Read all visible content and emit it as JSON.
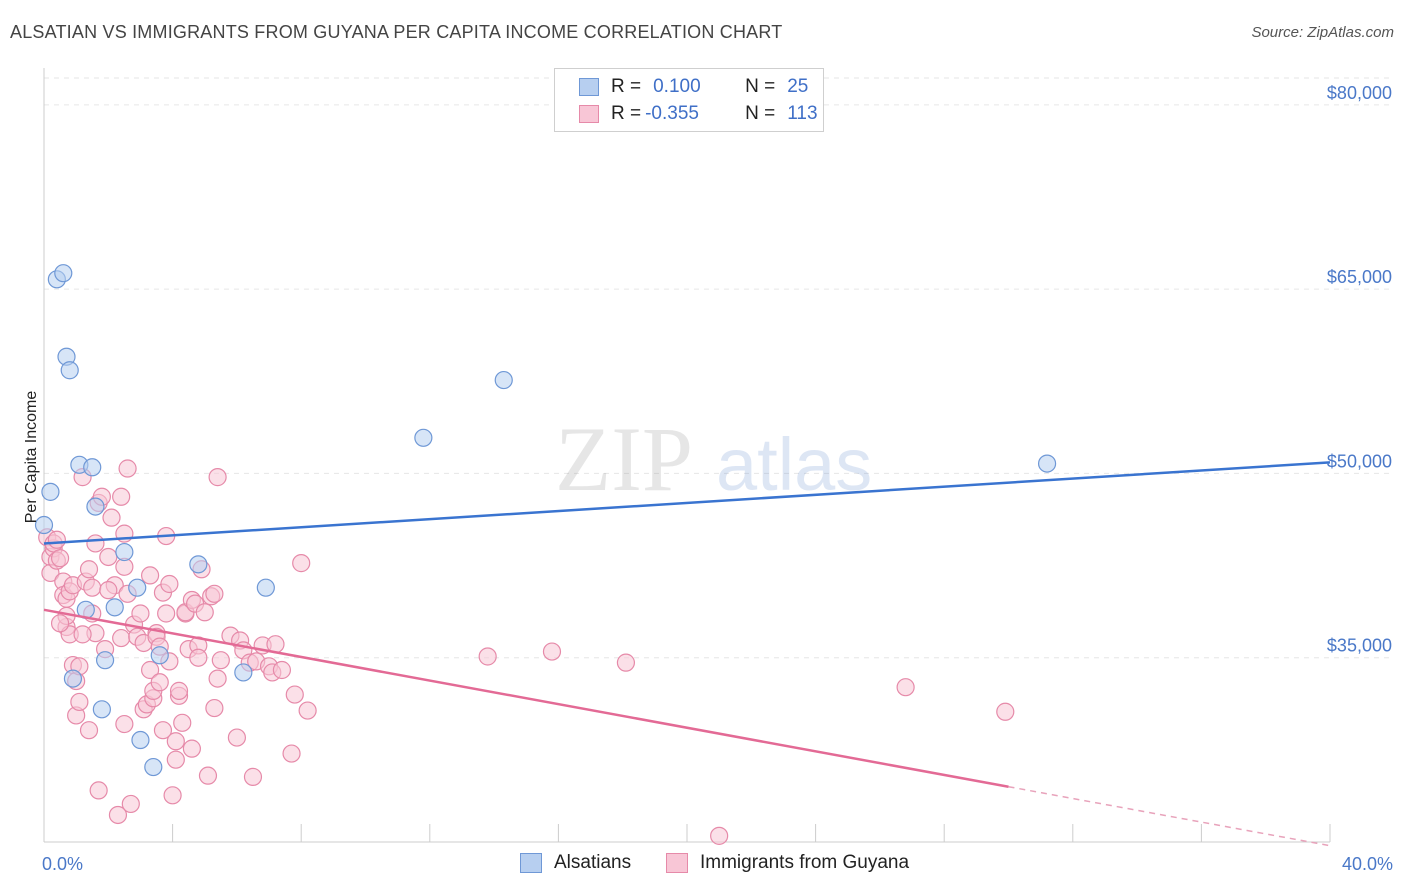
{
  "title": "ALSATIAN VS IMMIGRANTS FROM GUYANA PER CAPITA INCOME CORRELATION CHART",
  "source": "Source: ZipAtlas.com",
  "watermark": {
    "zip": "ZIP",
    "atlas": "atlas"
  },
  "legend": {
    "r_label": "R =",
    "n_label": "N =",
    "series1": {
      "r": "0.100",
      "n": "25"
    },
    "series2": {
      "r": "-0.355",
      "n": "113"
    }
  },
  "chart_data": {
    "type": "scatter",
    "title": "ALSATIAN VS IMMIGRANTS FROM GUYANA PER CAPITA INCOME CORRELATION CHART",
    "ylabel": "Per Capita Income",
    "xlabel": "",
    "xlim": [
      0,
      40
    ],
    "ylim": [
      20000,
      83000
    ],
    "x_tick_labels": {
      "left": "0.0%",
      "right": "40.0%"
    },
    "y_ticks": [
      {
        "value": 35000,
        "label": "$35,000"
      },
      {
        "value": 50000,
        "label": "$50,000"
      },
      {
        "value": 65000,
        "label": "$65,000"
      },
      {
        "value": 80000,
        "label": "$80,000"
      }
    ],
    "grid": true,
    "series": [
      {
        "name": "Alsatians",
        "color": "#6f98d6",
        "fill": "#b7cff0",
        "trend": {
          "x0": 0,
          "y0": 44300,
          "x1": 40,
          "y1": 50900,
          "dashed_from": null
        },
        "points": [
          [
            0.0,
            45800
          ],
          [
            0.2,
            48500
          ],
          [
            0.4,
            65800
          ],
          [
            0.6,
            66300
          ],
          [
            0.7,
            59500
          ],
          [
            0.8,
            58400
          ],
          [
            0.9,
            33300
          ],
          [
            1.1,
            50700
          ],
          [
            1.3,
            38900
          ],
          [
            1.5,
            50500
          ],
          [
            1.6,
            47300
          ],
          [
            1.8,
            30800
          ],
          [
            1.9,
            34800
          ],
          [
            2.2,
            39100
          ],
          [
            2.5,
            43600
          ],
          [
            2.9,
            40700
          ],
          [
            3.0,
            28300
          ],
          [
            3.4,
            26100
          ],
          [
            3.6,
            35200
          ],
          [
            4.8,
            42600
          ],
          [
            6.2,
            33800
          ],
          [
            6.9,
            40700
          ],
          [
            11.8,
            52900
          ],
          [
            14.3,
            57600
          ],
          [
            31.2,
            50800
          ]
        ]
      },
      {
        "name": "Immigrants from Guyana",
        "color": "#e68aa9",
        "fill": "#f8c6d6",
        "trend": {
          "x0": 0,
          "y0": 38900,
          "x1": 30,
          "y1": 24500,
          "dashed_to": {
            "x": 40,
            "y": 19700
          }
        },
        "points": [
          [
            0.1,
            44800
          ],
          [
            0.2,
            43200
          ],
          [
            0.2,
            41900
          ],
          [
            0.3,
            43900
          ],
          [
            0.3,
            44300
          ],
          [
            0.4,
            42900
          ],
          [
            0.4,
            44600
          ],
          [
            0.5,
            43100
          ],
          [
            0.6,
            41200
          ],
          [
            0.6,
            40100
          ],
          [
            0.7,
            39800
          ],
          [
            0.7,
            37500
          ],
          [
            0.7,
            38400
          ],
          [
            0.8,
            36900
          ],
          [
            0.8,
            40400
          ],
          [
            0.9,
            40900
          ],
          [
            0.9,
            34400
          ],
          [
            1.0,
            33100
          ],
          [
            1.0,
            30300
          ],
          [
            1.1,
            34300
          ],
          [
            1.1,
            31400
          ],
          [
            1.2,
            49700
          ],
          [
            1.3,
            41200
          ],
          [
            1.4,
            42200
          ],
          [
            1.4,
            29100
          ],
          [
            1.5,
            38600
          ],
          [
            1.5,
            40700
          ],
          [
            1.6,
            37000
          ],
          [
            1.6,
            44300
          ],
          [
            1.7,
            24200
          ],
          [
            1.7,
            47600
          ],
          [
            1.8,
            48100
          ],
          [
            1.9,
            35700
          ],
          [
            2.0,
            43200
          ],
          [
            2.1,
            46400
          ],
          [
            2.2,
            40900
          ],
          [
            2.3,
            22200
          ],
          [
            2.4,
            48100
          ],
          [
            2.4,
            36600
          ],
          [
            2.5,
            42400
          ],
          [
            2.5,
            45100
          ],
          [
            2.5,
            29600
          ],
          [
            2.6,
            50400
          ],
          [
            2.6,
            40200
          ],
          [
            2.7,
            23100
          ],
          [
            2.8,
            37700
          ],
          [
            2.9,
            36700
          ],
          [
            3.0,
            38600
          ],
          [
            3.1,
            30800
          ],
          [
            3.1,
            36200
          ],
          [
            3.2,
            31200
          ],
          [
            3.3,
            34000
          ],
          [
            3.3,
            41700
          ],
          [
            3.4,
            31700
          ],
          [
            3.4,
            32300
          ],
          [
            3.5,
            37000
          ],
          [
            3.5,
            36700
          ],
          [
            3.6,
            35900
          ],
          [
            3.6,
            33000
          ],
          [
            3.7,
            29100
          ],
          [
            3.7,
            40300
          ],
          [
            3.8,
            38600
          ],
          [
            3.8,
            44900
          ],
          [
            3.9,
            41000
          ],
          [
            3.9,
            34700
          ],
          [
            4.0,
            23800
          ],
          [
            4.1,
            28200
          ],
          [
            4.1,
            26700
          ],
          [
            4.2,
            31900
          ],
          [
            4.2,
            32300
          ],
          [
            4.3,
            29700
          ],
          [
            4.4,
            38600
          ],
          [
            4.4,
            38700
          ],
          [
            4.5,
            35700
          ],
          [
            4.6,
            27600
          ],
          [
            4.6,
            39700
          ],
          [
            4.7,
            39400
          ],
          [
            4.8,
            36000
          ],
          [
            4.8,
            35000
          ],
          [
            4.9,
            42200
          ],
          [
            5.0,
            38700
          ],
          [
            5.1,
            25400
          ],
          [
            5.2,
            40000
          ],
          [
            5.3,
            40200
          ],
          [
            5.3,
            30900
          ],
          [
            5.4,
            49700
          ],
          [
            5.4,
            33300
          ],
          [
            5.5,
            34800
          ],
          [
            5.8,
            36800
          ],
          [
            6.0,
            28500
          ],
          [
            6.1,
            36400
          ],
          [
            6.2,
            35600
          ],
          [
            6.4,
            34600
          ],
          [
            6.5,
            25300
          ],
          [
            6.6,
            34700
          ],
          [
            6.8,
            36000
          ],
          [
            7.0,
            34300
          ],
          [
            7.1,
            33800
          ],
          [
            7.2,
            36100
          ],
          [
            7.4,
            34000
          ],
          [
            7.7,
            27200
          ],
          [
            7.8,
            32000
          ],
          [
            8.0,
            42700
          ],
          [
            8.2,
            30700
          ],
          [
            13.8,
            35100
          ],
          [
            15.8,
            35500
          ],
          [
            18.1,
            34600
          ],
          [
            21.0,
            20500
          ],
          [
            26.8,
            32600
          ],
          [
            29.9,
            30600
          ],
          [
            2.0,
            40500
          ],
          [
            1.2,
            36900
          ],
          [
            0.5,
            37800
          ]
        ]
      }
    ]
  }
}
